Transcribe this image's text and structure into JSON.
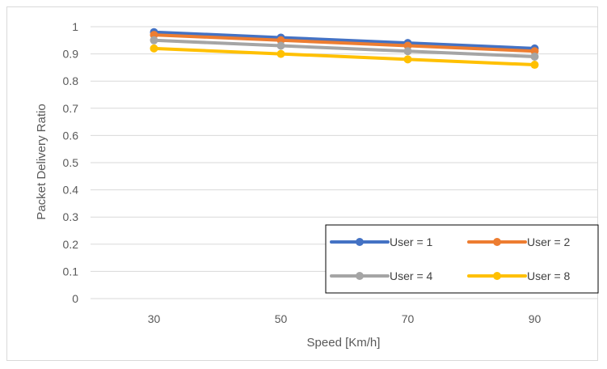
{
  "chart_data": {
    "type": "line",
    "title": "",
    "xlabel": "Speed [Km/h]",
    "ylabel": "Packet Delivery Ratio",
    "categories": [
      "30",
      "50",
      "70",
      "90"
    ],
    "ylim": [
      0,
      1
    ],
    "yticks": [
      "0",
      "0.1",
      "0.2",
      "0.3",
      "0.4",
      "0.5",
      "0.6",
      "0.7",
      "0.8",
      "0.9",
      "1"
    ],
    "grid": true,
    "legend_position": "bottom-right inside plot",
    "series": [
      {
        "name": "User = 1",
        "color": "#4472c4",
        "values": [
          0.98,
          0.96,
          0.94,
          0.92
        ]
      },
      {
        "name": "User = 2",
        "color": "#ed7d31",
        "values": [
          0.97,
          0.95,
          0.93,
          0.91
        ]
      },
      {
        "name": "User = 4",
        "color": "#a5a5a5",
        "values": [
          0.95,
          0.93,
          0.91,
          0.89
        ]
      },
      {
        "name": "User = 8",
        "color": "#ffc000",
        "values": [
          0.92,
          0.9,
          0.88,
          0.86
        ]
      }
    ]
  }
}
